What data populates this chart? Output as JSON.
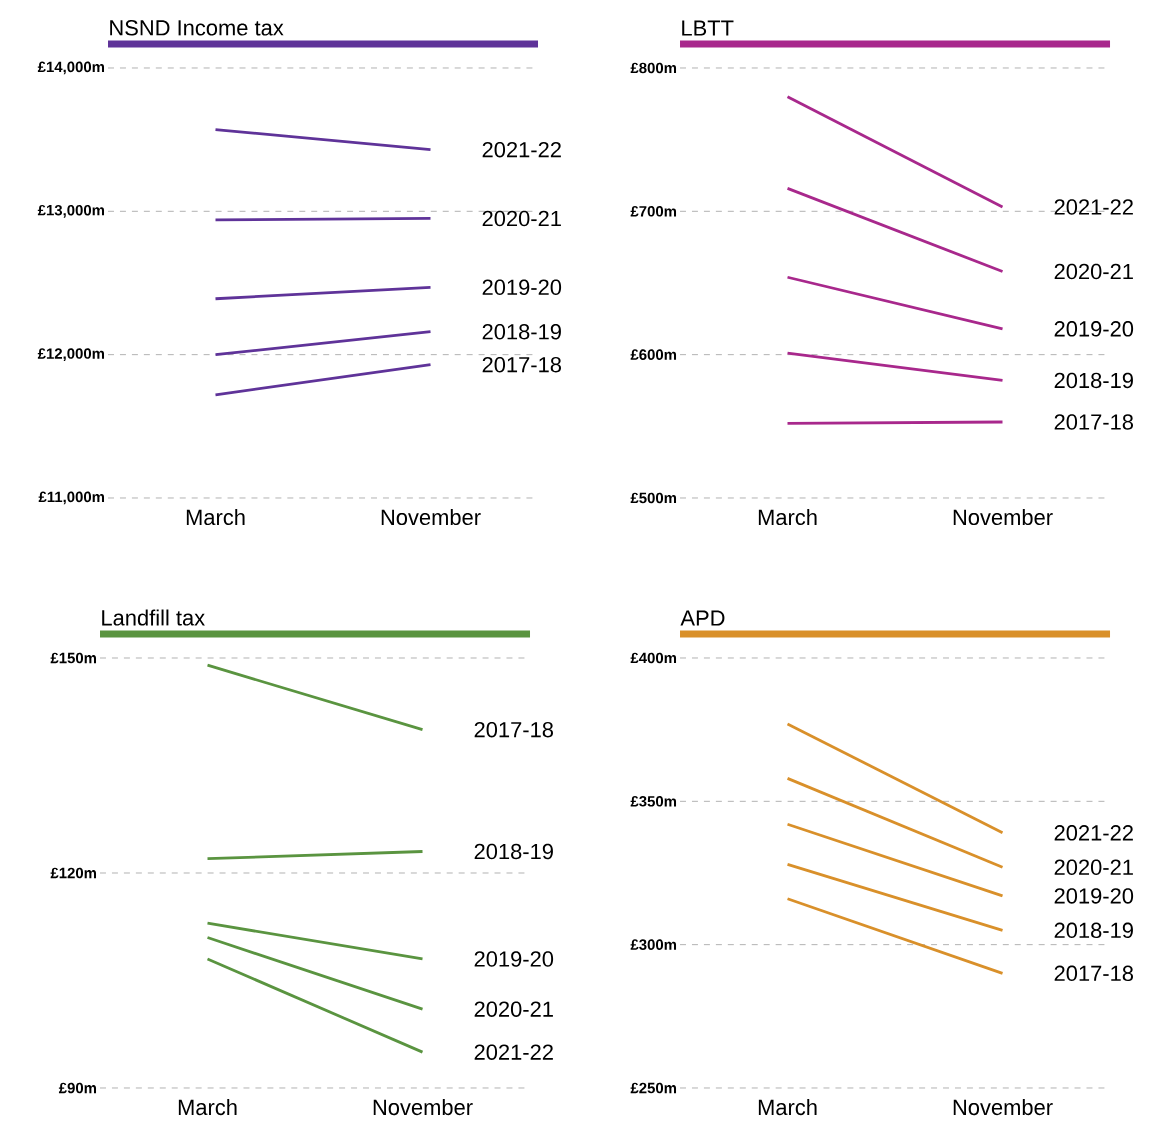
{
  "chart_data": [
    {
      "type": "line",
      "title": "NSND Income tax",
      "categories": [
        "March",
        "November"
      ],
      "ylim": [
        11000,
        14000
      ],
      "yticks": [
        {
          "value": 11000,
          "label": "£11,000m"
        },
        {
          "value": 12000,
          "label": "£12,000m"
        },
        {
          "value": 13000,
          "label": "£13,000m"
        },
        {
          "value": 14000,
          "label": "£14,000m"
        }
      ],
      "grid": "y",
      "marker": "none",
      "series": [
        {
          "name": "2017-18",
          "color": "#5f3399",
          "values": [
            11720,
            11930
          ]
        },
        {
          "name": "2018-19",
          "color": "#5f3399",
          "values": [
            12000,
            12160
          ]
        },
        {
          "name": "2019-20",
          "color": "#5f3399",
          "values": [
            12390,
            12470
          ]
        },
        {
          "name": "2020-21",
          "color": "#5f3399",
          "values": [
            12940,
            12950
          ]
        },
        {
          "name": "2021-22",
          "color": "#5f3399",
          "values": [
            13570,
            13430
          ]
        }
      ]
    },
    {
      "type": "line",
      "title": "LBTT",
      "categories": [
        "March",
        "November"
      ],
      "ylim": [
        500,
        800
      ],
      "yticks": [
        {
          "value": 500,
          "label": "£500m"
        },
        {
          "value": 600,
          "label": "£600m"
        },
        {
          "value": 700,
          "label": "£700m"
        },
        {
          "value": 800,
          "label": "£800m"
        }
      ],
      "grid": "y",
      "marker": "none",
      "series": [
        {
          "name": "2017-18",
          "color": "#a8288c",
          "values": [
            552,
            553
          ]
        },
        {
          "name": "2018-19",
          "color": "#a8288c",
          "values": [
            601,
            582
          ]
        },
        {
          "name": "2019-20",
          "color": "#a8288c",
          "values": [
            654,
            618
          ]
        },
        {
          "name": "2020-21",
          "color": "#a8288c",
          "values": [
            716,
            658
          ]
        },
        {
          "name": "2021-22",
          "color": "#a8288c",
          "values": [
            780,
            703
          ]
        }
      ]
    },
    {
      "type": "line",
      "title": "Landfill tax",
      "categories": [
        "March",
        "November"
      ],
      "ylim": [
        90,
        150
      ],
      "yticks": [
        {
          "value": 90,
          "label": "£90m"
        },
        {
          "value": 120,
          "label": "£120m"
        },
        {
          "value": 150,
          "label": "£150m"
        }
      ],
      "grid": "y",
      "marker": "none",
      "series": [
        {
          "name": "2017-18",
          "color": "#5a9440",
          "values": [
            149,
            140
          ]
        },
        {
          "name": "2018-19",
          "color": "#5a9440",
          "values": [
            122,
            123
          ]
        },
        {
          "name": "2019-20",
          "color": "#5a9440",
          "values": [
            113,
            108
          ]
        },
        {
          "name": "2020-21",
          "color": "#5a9440",
          "values": [
            111,
            101
          ]
        },
        {
          "name": "2021-22",
          "color": "#5a9440",
          "values": [
            108,
            95
          ]
        }
      ]
    },
    {
      "type": "line",
      "title": "APD",
      "categories": [
        "March",
        "November"
      ],
      "ylim": [
        250,
        400
      ],
      "yticks": [
        {
          "value": 250,
          "label": "£250m"
        },
        {
          "value": 300,
          "label": "£300m"
        },
        {
          "value": 350,
          "label": "£350m"
        },
        {
          "value": 400,
          "label": "£400m"
        }
      ],
      "grid": "y",
      "marker": "none",
      "series": [
        {
          "name": "2017-18",
          "color": "#d9902a",
          "values": [
            316,
            290
          ]
        },
        {
          "name": "2018-19",
          "color": "#d9902a",
          "values": [
            328,
            305
          ]
        },
        {
          "name": "2019-20",
          "color": "#d9902a",
          "values": [
            342,
            317
          ]
        },
        {
          "name": "2020-21",
          "color": "#d9902a",
          "values": [
            358,
            327
          ]
        },
        {
          "name": "2021-22",
          "color": "#d9902a",
          "values": [
            377,
            339
          ]
        }
      ]
    }
  ]
}
